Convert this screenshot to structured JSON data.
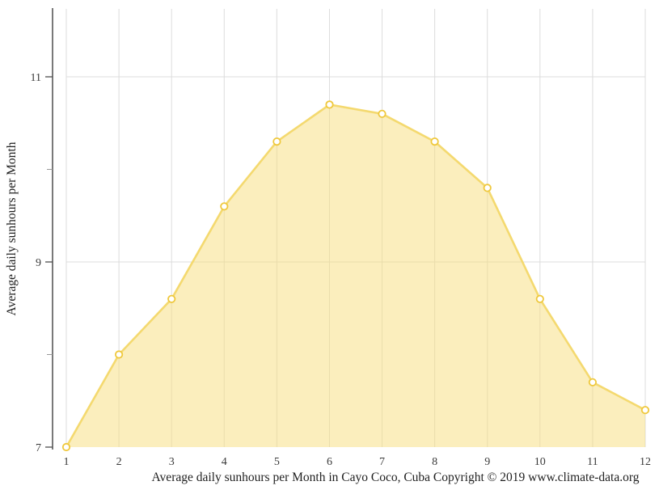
{
  "chart_data": {
    "type": "area",
    "title": "",
    "caption": "Average daily sunhours per Month in Cayo Coco, Cuba Copyright © 2019 www.climate-data.org",
    "ylabel": "Average daily sunhours per Month",
    "xlabel": "",
    "x_categories": [
      "1",
      "2",
      "3",
      "4",
      "5",
      "6",
      "7",
      "8",
      "9",
      "10",
      "11",
      "12"
    ],
    "series": [
      {
        "name": "Average daily sunhours",
        "values": [
          7.0,
          8.0,
          8.6,
          9.6,
          10.3,
          10.7,
          10.6,
          10.3,
          9.8,
          8.6,
          7.7,
          7.4
        ]
      }
    ],
    "ylim": [
      7,
      11.74
    ],
    "yticks_labeled": [
      7,
      9,
      11
    ],
    "yticks_minor": [
      8,
      10
    ],
    "grid_horizontal_at": [
      9,
      11
    ],
    "grid_vertical_at_every_month": true,
    "legend": "none",
    "marker": "open-circle",
    "colors": {
      "area_fill": "#F7DE7B",
      "area_fill_opacity": 0.5,
      "line": "#F4D96F",
      "marker_fill": "#FFFFFF",
      "marker_stroke": "#EFC83C",
      "grid": "#DCDCDC",
      "axis": "#4D4D4D",
      "tick_minor": "#999999",
      "text": "#3a3a3a"
    }
  }
}
